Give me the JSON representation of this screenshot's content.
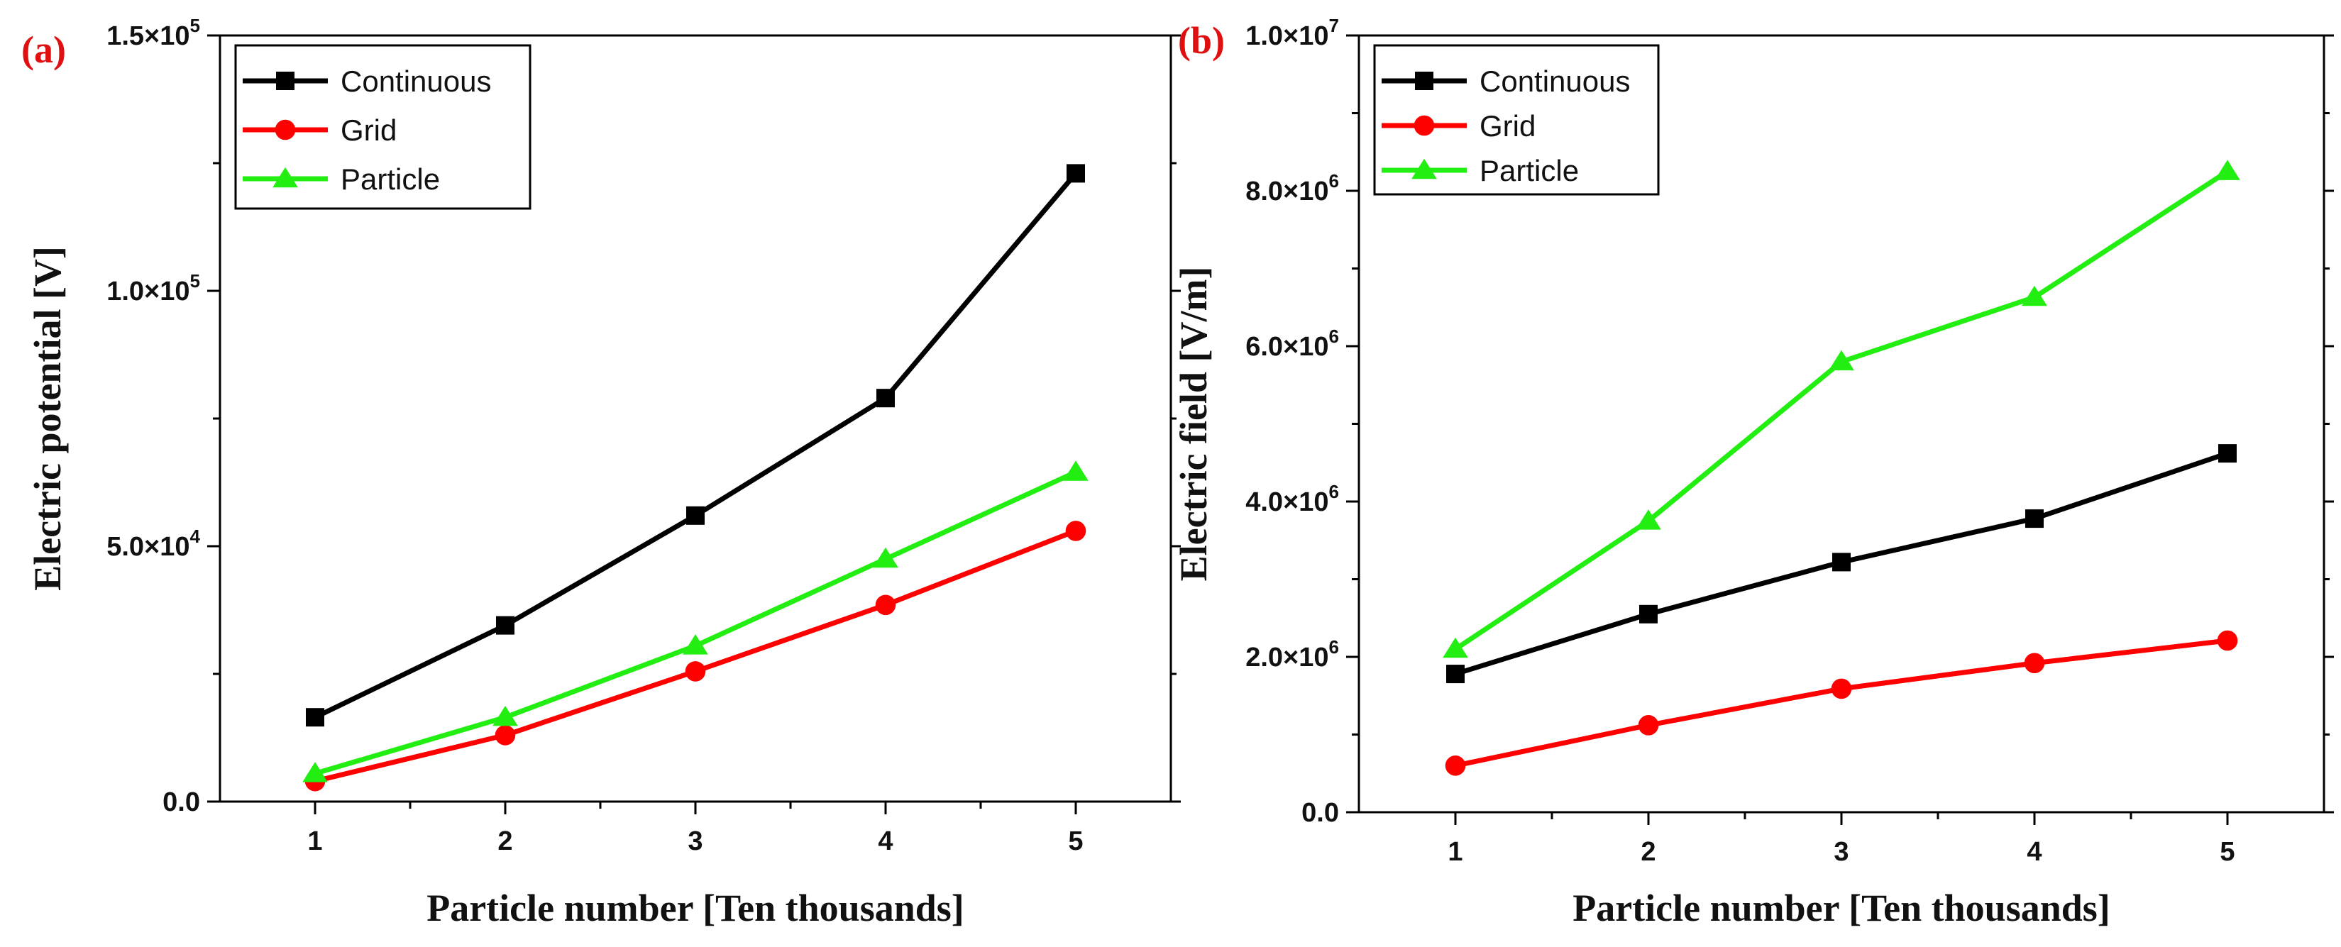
{
  "chart_data": [
    {
      "panel_label": "(a)",
      "type": "line",
      "xlabel": "Particle number [Ten thousands]",
      "ylabel": "Electric potential [V]",
      "x": [
        1,
        2,
        3,
        4,
        5
      ],
      "xlim": [
        0.5,
        5.5
      ],
      "ylim": [
        0,
        150000
      ],
      "yticks": [
        {
          "value": 0,
          "mantissa": "0.0",
          "exp": ""
        },
        {
          "value": 50000,
          "mantissa": "5.0×10",
          "exp": "4"
        },
        {
          "value": 100000,
          "mantissa": "1.0×10",
          "exp": "5"
        },
        {
          "value": 150000,
          "mantissa": "1.5×10",
          "exp": "5"
        }
      ],
      "xtick_labels": [
        "1",
        "2",
        "3",
        "4",
        "5"
      ],
      "legend_position": "top-left",
      "series": [
        {
          "name": "Continuous",
          "color": "#000000",
          "marker": "square",
          "values": [
            16500,
            34500,
            56000,
            79000,
            123000
          ]
        },
        {
          "name": "Grid",
          "color": "#ff0000",
          "marker": "circle",
          "values": [
            4000,
            13000,
            25500,
            38500,
            53000
          ]
        },
        {
          "name": "Particle",
          "color": "#22ee11",
          "marker": "triangle",
          "values": [
            5500,
            16500,
            30500,
            47500,
            64500
          ]
        }
      ]
    },
    {
      "panel_label": "(b)",
      "type": "line",
      "xlabel": "Particle number [Ten thousands]",
      "ylabel": "Electric field [V/m]",
      "x": [
        1,
        2,
        3,
        4,
        5
      ],
      "xlim": [
        0.5,
        5.5
      ],
      "ylim": [
        0,
        10000000
      ],
      "yticks": [
        {
          "value": 0,
          "mantissa": "0.0",
          "exp": ""
        },
        {
          "value": 2000000,
          "mantissa": "2.0×10",
          "exp": "6"
        },
        {
          "value": 4000000,
          "mantissa": "4.0×10",
          "exp": "6"
        },
        {
          "value": 6000000,
          "mantissa": "6.0×10",
          "exp": "6"
        },
        {
          "value": 8000000,
          "mantissa": "8.0×10",
          "exp": "6"
        },
        {
          "value": 10000000,
          "mantissa": "1.0×10",
          "exp": "7"
        }
      ],
      "xtick_labels": [
        "1",
        "2",
        "3",
        "4",
        "5"
      ],
      "legend_position": "top-left",
      "series": [
        {
          "name": "Continuous",
          "color": "#000000",
          "marker": "square",
          "values": [
            1780000,
            2550000,
            3220000,
            3780000,
            4620000
          ]
        },
        {
          "name": "Grid",
          "color": "#ff0000",
          "marker": "circle",
          "values": [
            600000,
            1120000,
            1590000,
            1920000,
            2210000
          ]
        },
        {
          "name": "Particle",
          "color": "#22ee11",
          "marker": "triangle",
          "values": [
            2100000,
            3750000,
            5800000,
            6630000,
            8250000
          ]
        }
      ]
    }
  ]
}
